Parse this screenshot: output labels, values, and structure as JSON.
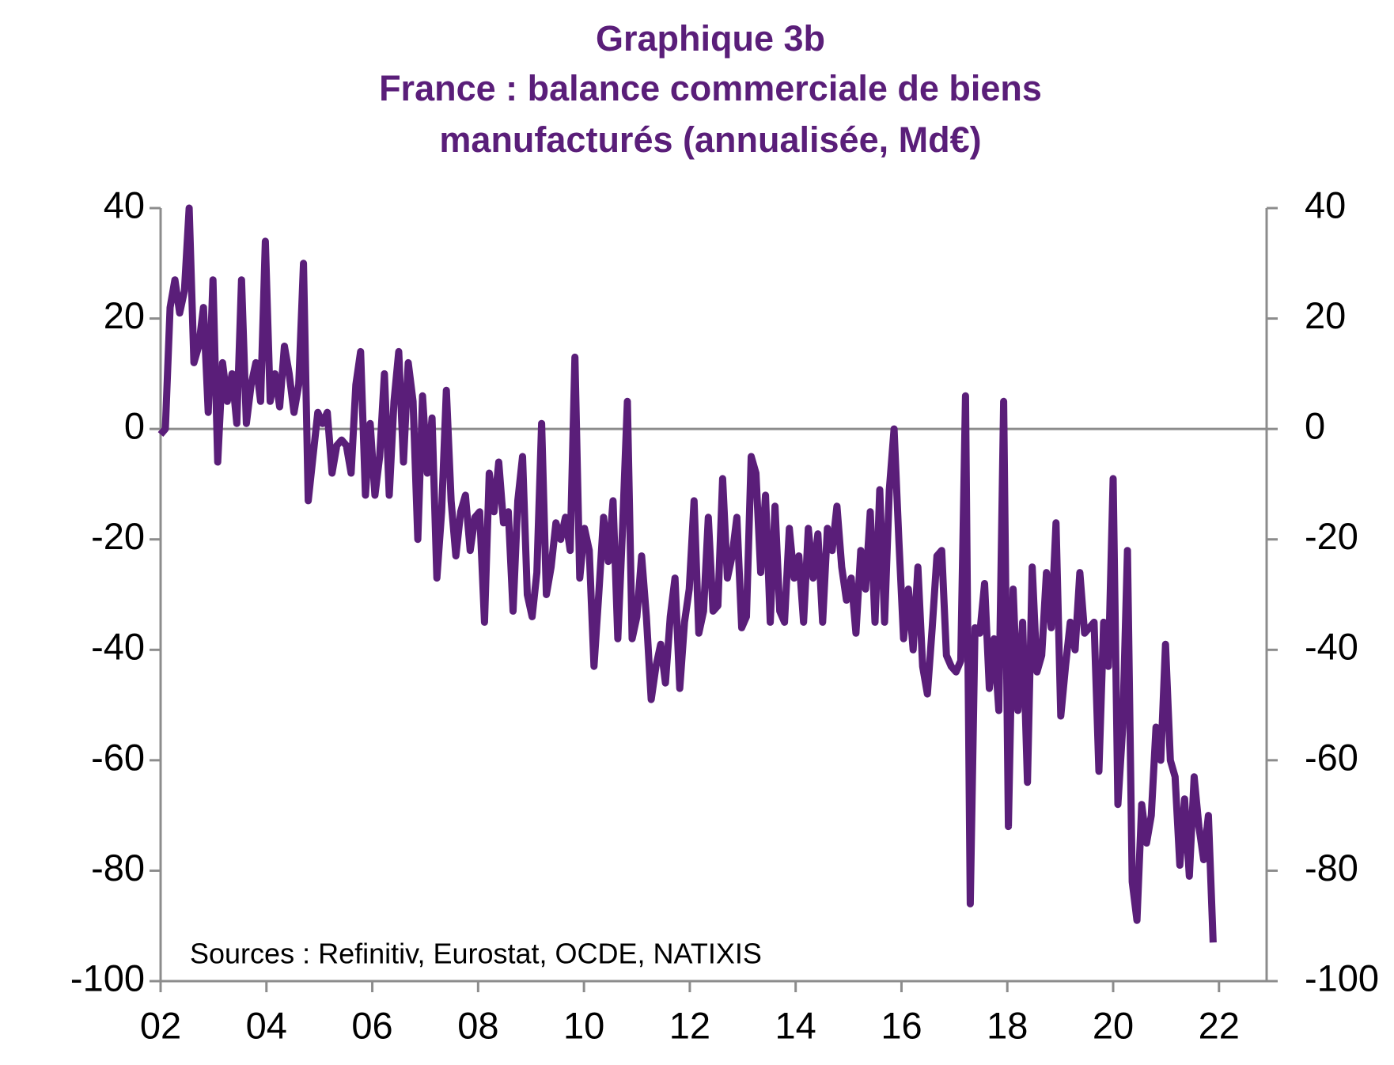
{
  "chart_data": {
    "type": "line",
    "title": [
      "Graphique 3b",
      "France : balance commerciale de biens",
      "manufacturés (annualisée, Md€)"
    ],
    "annotation": "Sources : Refinitiv, Eurostat, OCDE, NATIXIS",
    "xlim": [
      2002,
      2022.9
    ],
    "xticks": [
      {
        "value": 2002,
        "label": "02"
      },
      {
        "value": 2004,
        "label": "04"
      },
      {
        "value": 2006,
        "label": "06"
      },
      {
        "value": 2008,
        "label": "08"
      },
      {
        "value": 2010,
        "label": "10"
      },
      {
        "value": 2012,
        "label": "12"
      },
      {
        "value": 2014,
        "label": "14"
      },
      {
        "value": 2016,
        "label": "16"
      },
      {
        "value": 2018,
        "label": "18"
      },
      {
        "value": 2020,
        "label": "20"
      },
      {
        "value": 2022,
        "label": "22"
      }
    ],
    "ylim": [
      -100,
      40
    ],
    "yticks": [
      -100,
      -80,
      -60,
      -40,
      -20,
      0,
      20,
      40
    ],
    "y2lim": [
      -100,
      40
    ],
    "y2ticks": [
      -100,
      -80,
      -60,
      -40,
      -20,
      0,
      20,
      40
    ],
    "zero_line": true,
    "x": [
      2002,
      2002.09,
      2002.18,
      2002.27,
      2002.36,
      2002.45,
      2002.54,
      2002.63,
      2002.72,
      2002.81,
      2002.9,
      2002.99,
      2003.08,
      2003.17,
      2003.26,
      2003.35,
      2003.44,
      2003.53,
      2003.62,
      2003.71,
      2003.8,
      2003.89,
      2003.98,
      2004.07,
      2004.16,
      2004.25,
      2004.34,
      2004.43,
      2004.52,
      2004.61,
      2004.7,
      2004.79,
      2004.88,
      2004.97,
      2005.06,
      2005.15,
      2005.24,
      2005.33,
      2005.42,
      2005.51,
      2005.6,
      2005.69,
      2005.78,
      2005.87,
      2005.96,
      2006.05,
      2006.14,
      2006.23,
      2006.32,
      2006.41,
      2006.5,
      2006.59,
      2006.68,
      2006.77,
      2006.86,
      2006.95,
      2007.04,
      2007.13,
      2007.22,
      2007.31,
      2007.4,
      2007.49,
      2007.58,
      2007.67,
      2007.76,
      2007.85,
      2007.94,
      2008.03,
      2008.12,
      2008.21,
      2008.3,
      2008.39,
      2008.48,
      2008.57,
      2008.66,
      2008.75,
      2008.84,
      2008.93,
      2009.02,
      2009.11,
      2009.2,
      2009.29,
      2009.38,
      2009.47,
      2009.56,
      2009.65,
      2009.74,
      2009.83,
      2009.92,
      2010.01,
      2010.1,
      2010.19,
      2010.28,
      2010.37,
      2010.46,
      2010.55,
      2010.64,
      2010.73,
      2010.82,
      2010.91,
      2011,
      2011.09,
      2011.18,
      2011.27,
      2011.36,
      2011.45,
      2011.54,
      2011.63,
      2011.72,
      2011.81,
      2011.9,
      2011.99,
      2012.08,
      2012.17,
      2012.26,
      2012.35,
      2012.44,
      2012.53,
      2012.62,
      2012.71,
      2012.8,
      2012.89,
      2012.98,
      2013.07,
      2013.16,
      2013.25,
      2013.34,
      2013.43,
      2013.52,
      2013.61,
      2013.7,
      2013.79,
      2013.88,
      2013.97,
      2014.06,
      2014.15,
      2014.24,
      2014.33,
      2014.42,
      2014.51,
      2014.6,
      2014.69,
      2014.78,
      2014.87,
      2014.96,
      2015.05,
      2015.14,
      2015.23,
      2015.32,
      2015.41,
      2015.5,
      2015.59,
      2015.68,
      2015.77,
      2015.86,
      2015.95,
      2016.04,
      2016.13,
      2016.22,
      2016.31,
      2016.4,
      2016.49,
      2016.58,
      2016.67,
      2016.76,
      2016.85,
      2016.94,
      2017.03,
      2017.12,
      2017.21,
      2017.3,
      2017.39,
      2017.48,
      2017.57,
      2017.66,
      2017.75,
      2017.84,
      2017.93,
      2018.02,
      2018.11,
      2018.2,
      2018.29,
      2018.38,
      2018.47,
      2018.56,
      2018.65,
      2018.74,
      2018.83,
      2018.92,
      2019.01,
      2019.1,
      2019.19,
      2019.28,
      2019.37,
      2019.46,
      2019.55,
      2019.64,
      2019.73,
      2019.82,
      2019.91,
      2020,
      2020.09,
      2020.18,
      2020.27,
      2020.36,
      2020.45,
      2020.54,
      2020.63,
      2020.72,
      2020.81,
      2020.9,
      2020.99,
      2021.08,
      2021.17,
      2021.26,
      2021.35,
      2021.44,
      2021.53,
      2021.62,
      2021.71,
      2021.8,
      2021.89
    ],
    "series": [
      {
        "color": "#5a1e79",
        "values": [
          -1,
          0,
          22,
          27,
          21,
          25,
          40,
          12,
          15,
          22,
          3,
          27,
          -6,
          12,
          5,
          10,
          1,
          27,
          1,
          8,
          12,
          5,
          34,
          5,
          10,
          4,
          15,
          10,
          3,
          8,
          30,
          -13,
          -5,
          3,
          1,
          3,
          -8,
          -3,
          -2,
          -3,
          -8,
          8,
          14,
          -12,
          1,
          -12,
          -5,
          10,
          -12,
          5,
          14,
          -6,
          12,
          5,
          -20,
          6,
          -8,
          2,
          -27,
          -15,
          7,
          -13,
          -23,
          -15,
          -12,
          -22,
          -16,
          -15,
          -35,
          -8,
          -15,
          -6,
          -17,
          -15,
          -33,
          -13,
          -5,
          -30,
          -34,
          -26,
          1,
          -30,
          -25,
          -17,
          -20,
          -16,
          -22,
          13,
          -27,
          -18,
          -22,
          -43,
          -30,
          -16,
          -24,
          -13,
          -38,
          -18,
          5,
          -38,
          -34,
          -23,
          -34,
          -49,
          -43,
          -39,
          -46,
          -34,
          -27,
          -47,
          -35,
          -29,
          -13,
          -37,
          -33,
          -16,
          -33,
          -32,
          -9,
          -27,
          -23,
          -16,
          -36,
          -34,
          -5,
          -8,
          -26,
          -12,
          -35,
          -14,
          -33,
          -35,
          -18,
          -27,
          -23,
          -35,
          -18,
          -27,
          -19,
          -35,
          -18,
          -22,
          -14,
          -25,
          -31,
          -27,
          -37,
          -22,
          -29,
          -15,
          -35,
          -11,
          -35,
          -11,
          0,
          -20,
          -38,
          -29,
          -40,
          -25,
          -43,
          -48,
          -36,
          -23,
          -22,
          -41,
          -43,
          -44,
          -42,
          6,
          -86,
          -36,
          -37,
          -28,
          -47,
          -38,
          -51,
          5,
          -72,
          -29,
          -51,
          -35,
          -64,
          -25,
          -44,
          -41,
          -26,
          -36,
          -17,
          -52,
          -43,
          -35,
          -40,
          -26,
          -37,
          -36,
          -35,
          -62,
          -35,
          -43,
          -9,
          -68,
          -54,
          -22,
          -82,
          -89,
          -68,
          -75,
          -70,
          -54,
          -60,
          -39,
          -60,
          -63,
          -79,
          -67,
          -81,
          -63,
          -72,
          -78,
          -70,
          -93
        ]
      }
    ]
  }
}
